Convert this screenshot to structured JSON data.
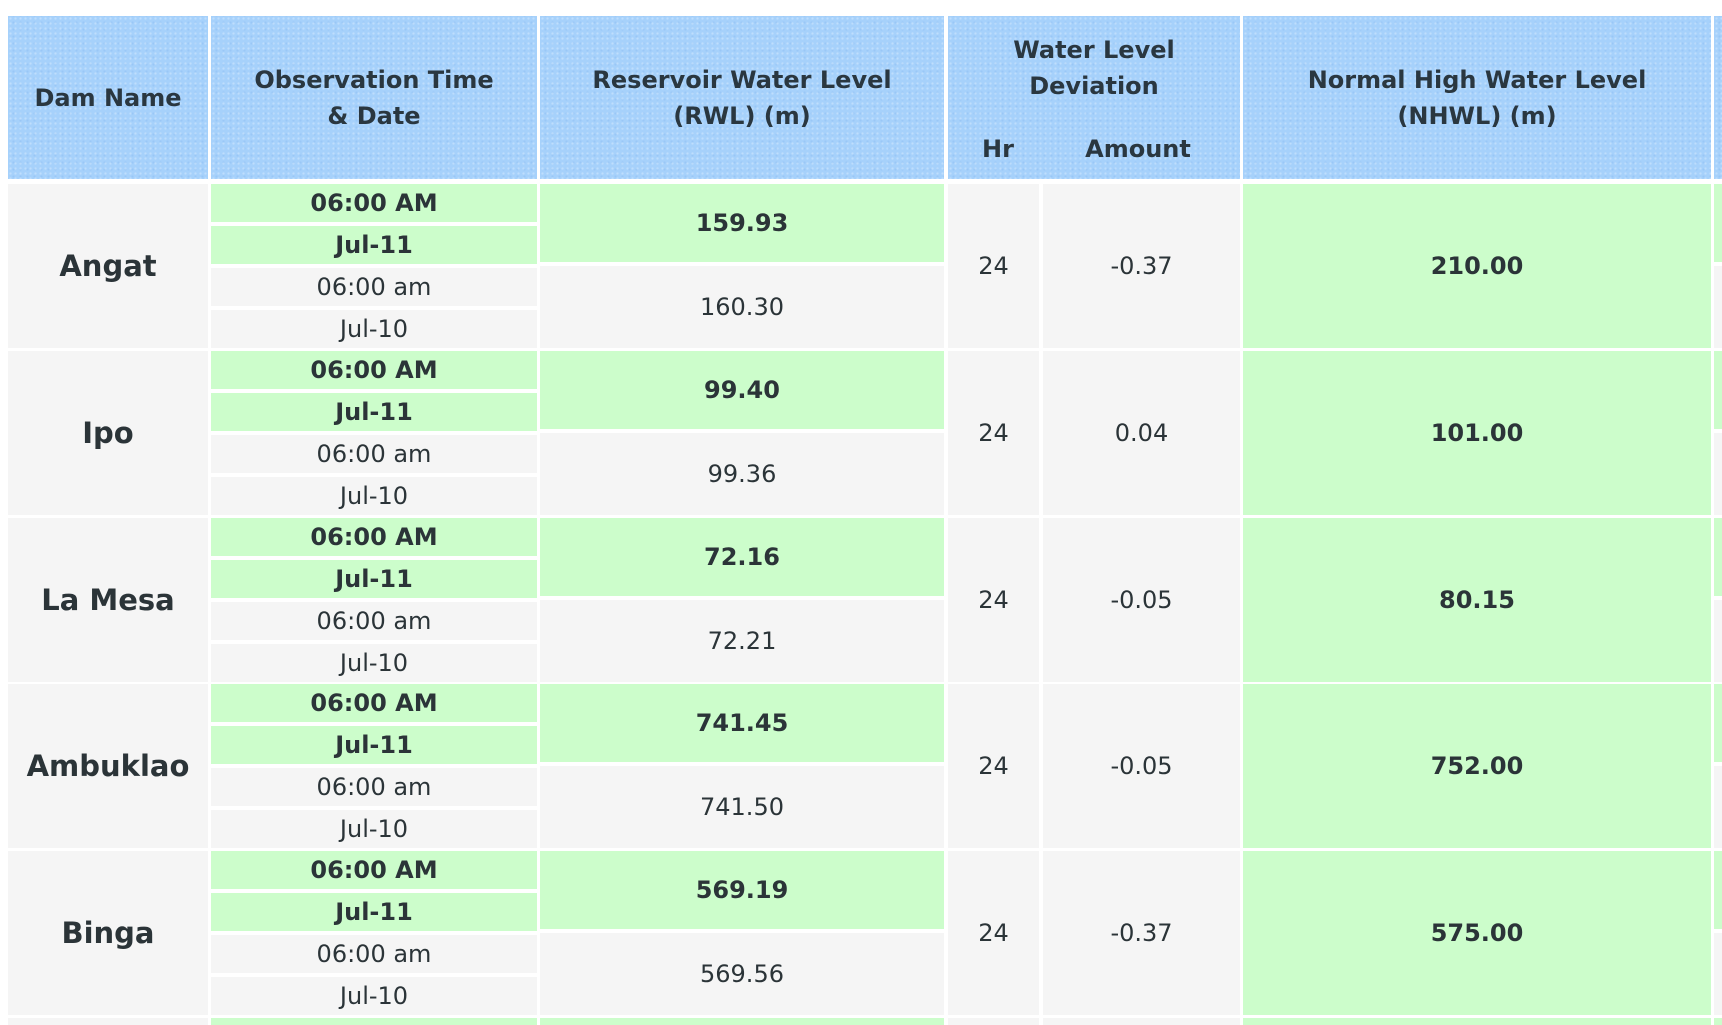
{
  "header": {
    "dam_name": "Dam Name",
    "observation": "Observation Time & Date",
    "rwl": "Reservoir Water Level (RWL) (m)",
    "deviation": "Water Level Deviation",
    "hr": "Hr",
    "amount": "Amount",
    "nhwl": "Normal High Water Level (NHWL) (m)"
  },
  "rows": [
    {
      "dam": "Angat",
      "cur_time": "06:00 AM",
      "cur_date": "Jul-11",
      "prev_time": "06:00 am",
      "prev_date": "Jul-10",
      "rwl_cur": "159.93",
      "rwl_prev": "160.30",
      "hr": "24",
      "amount": "-0.37",
      "nhwl": "210.00"
    },
    {
      "dam": "Ipo",
      "cur_time": "06:00 AM",
      "cur_date": "Jul-11",
      "prev_time": "06:00 am",
      "prev_date": "Jul-10",
      "rwl_cur": "99.40",
      "rwl_prev": "99.36",
      "hr": "24",
      "amount": "0.04",
      "nhwl": "101.00"
    },
    {
      "dam": "La Mesa",
      "cur_time": "06:00 AM",
      "cur_date": "Jul-11",
      "prev_time": "06:00 am",
      "prev_date": "Jul-10",
      "rwl_cur": "72.16",
      "rwl_prev": "72.21",
      "hr": "24",
      "amount": "-0.05",
      "nhwl": "80.15"
    },
    {
      "dam": "Ambuklao",
      "cur_time": "06:00 AM",
      "cur_date": "Jul-11",
      "prev_time": "06:00 am",
      "prev_date": "Jul-10",
      "rwl_cur": "741.45",
      "rwl_prev": "741.50",
      "hr": "24",
      "amount": "-0.05",
      "nhwl": "752.00"
    },
    {
      "dam": "Binga",
      "cur_time": "06:00 AM",
      "cur_date": "Jul-11",
      "prev_time": "06:00 am",
      "prev_date": "Jul-10",
      "rwl_cur": "569.19",
      "rwl_prev": "569.56",
      "hr": "24",
      "amount": "-0.37",
      "nhwl": "575.00"
    }
  ]
}
